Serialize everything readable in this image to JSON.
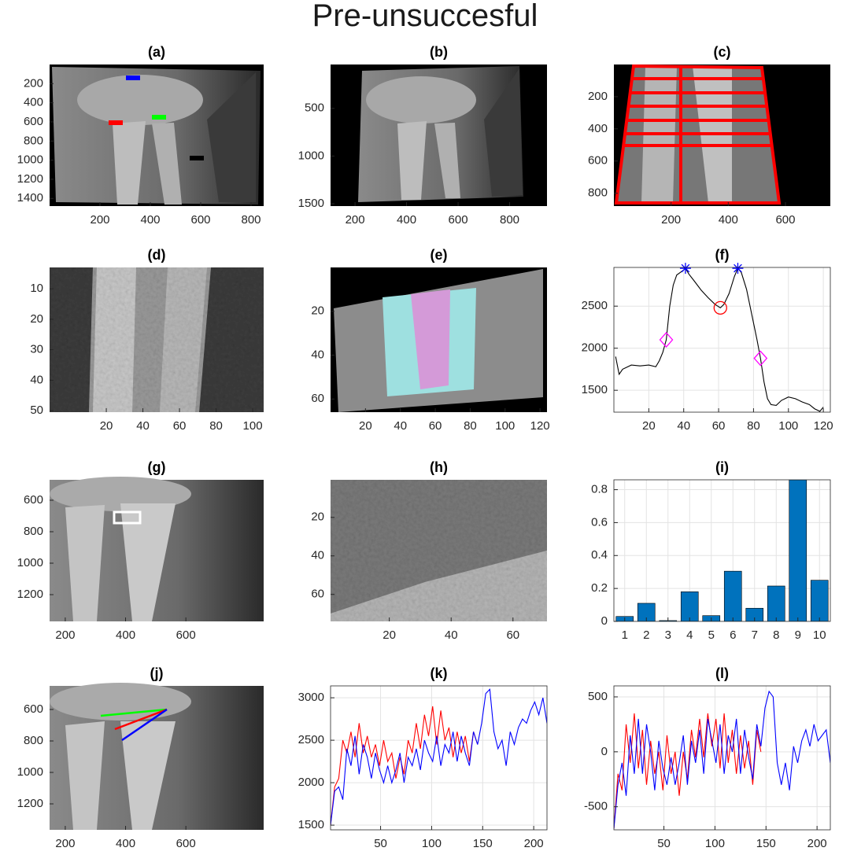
{
  "title": "Pre-unsuccesful",
  "chart_data": [
    {
      "type": "image",
      "title": "(a)",
      "xlim": [
        0,
        850
      ],
      "ylim": [
        0,
        1480
      ],
      "yreverse": true,
      "xticks": [
        200,
        400,
        600,
        800
      ],
      "yticks": [
        200,
        400,
        600,
        800,
        1000,
        1200,
        1400
      ]
    },
    {
      "type": "image",
      "title": "(b)",
      "xlim": [
        105,
        945
      ],
      "ylim": [
        40,
        1525
      ],
      "yreverse": true,
      "xticks": [
        200,
        400,
        600,
        800
      ],
      "yticks": [
        500,
        1000,
        1500
      ]
    },
    {
      "type": "image",
      "title": "(c)",
      "xlim": [
        0,
        757
      ],
      "ylim": [
        0,
        880
      ],
      "yreverse": true,
      "xticks": [
        200,
        400,
        600
      ],
      "yticks": [
        200,
        400,
        600,
        800
      ]
    },
    {
      "type": "image",
      "title": "(d)",
      "xlim": [
        -11,
        106
      ],
      "ylim": [
        3,
        50.5
      ],
      "yreverse": true,
      "xticks": [
        20,
        40,
        60,
        80,
        100
      ],
      "yticks": [
        10,
        20,
        30,
        40,
        50
      ]
    },
    {
      "type": "image",
      "title": "(e)",
      "xlim": [
        0,
        124
      ],
      "ylim": [
        0,
        66
      ],
      "yreverse": true,
      "xticks": [
        20,
        40,
        60,
        80,
        100,
        120
      ],
      "yticks": [
        20,
        40,
        60
      ]
    },
    {
      "type": "line",
      "title": "(f)",
      "grid": true,
      "xlim": [
        0,
        124
      ],
      "ylim": [
        1240,
        2960
      ],
      "xticks": [
        20,
        40,
        60,
        80,
        100,
        120
      ],
      "yticks": [
        1500,
        2000,
        2500
      ],
      "series": [
        {
          "color": "#000000",
          "x": [
            1,
            3,
            5,
            10,
            15,
            20,
            24,
            26,
            28,
            30,
            32,
            34,
            36,
            38,
            40,
            41,
            43,
            46,
            50,
            54,
            58,
            61,
            63,
            66,
            69,
            71,
            73,
            76,
            79,
            82,
            84,
            86,
            88,
            90,
            93,
            96,
            100,
            104,
            108,
            112,
            115,
            118,
            120
          ],
          "values": [
            1900,
            1690,
            1750,
            1800,
            1790,
            1800,
            1780,
            1850,
            1950,
            2100,
            2500,
            2750,
            2870,
            2900,
            2930,
            2950,
            2880,
            2800,
            2690,
            2600,
            2520,
            2480,
            2520,
            2650,
            2850,
            2950,
            2900,
            2700,
            2400,
            2100,
            1880,
            1600,
            1400,
            1330,
            1320,
            1380,
            1420,
            1400,
            1360,
            1330,
            1280,
            1250,
            1300
          ]
        },
        {
          "color": "#0000ff",
          "marker": "star",
          "x": [
            41,
            71
          ],
          "values": [
            2950,
            2950
          ]
        },
        {
          "color": "#ff0000",
          "marker": "circle",
          "x": [
            61
          ],
          "values": [
            2480
          ]
        },
        {
          "color": "#ff00ff",
          "marker": "diamond",
          "x": [
            30,
            84
          ],
          "values": [
            2100,
            1880
          ]
        }
      ]
    },
    {
      "type": "image",
      "title": "(g)",
      "xlim": [
        148,
        858
      ],
      "ylim": [
        470,
        1370
      ],
      "yreverse": true,
      "xticks": [
        200,
        400,
        600
      ],
      "yticks": [
        600,
        800,
        1000,
        1200
      ]
    },
    {
      "type": "image",
      "title": "(h)",
      "xlim": [
        1,
        71
      ],
      "ylim": [
        0.5,
        74
      ],
      "yreverse": true,
      "xticks": [
        20,
        40,
        60
      ],
      "yticks": [
        20,
        40,
        60
      ]
    },
    {
      "type": "bar",
      "title": "(i)",
      "grid": true,
      "color": "#0072bd",
      "x": [
        1,
        2,
        3,
        4,
        5,
        6,
        7,
        8,
        9,
        10
      ],
      "values": [
        0.03,
        0.11,
        0.005,
        0.18,
        0.035,
        0.305,
        0.08,
        0.215,
        0.86,
        0.25
      ],
      "xlim": [
        0.5,
        10.5
      ],
      "ylim": [
        0,
        0.86
      ],
      "xticks": [
        1,
        2,
        3,
        4,
        5,
        6,
        7,
        8,
        9,
        10
      ],
      "yticks": [
        0,
        0.2,
        0.4,
        0.6,
        0.8
      ]
    },
    {
      "type": "image",
      "title": "(j)",
      "xlim": [
        148,
        858
      ],
      "ylim": [
        450,
        1365
      ],
      "yreverse": true,
      "xticks": [
        200,
        400,
        600
      ],
      "yticks": [
        600,
        800,
        1000,
        1200
      ]
    },
    {
      "type": "line",
      "title": "(k)",
      "grid": true,
      "xlim": [
        1,
        213
      ],
      "ylim": [
        1445,
        3140
      ],
      "xticks": [
        50,
        100,
        150,
        200
      ],
      "yticks": [
        1500,
        2000,
        2500,
        3000
      ],
      "series": [
        {
          "color": "#ff0000",
          "x": [
            1,
            5,
            9,
            13,
            17,
            21,
            25,
            29,
            33,
            37,
            41,
            45,
            49,
            53,
            57,
            61,
            65,
            69,
            73,
            77,
            81,
            85,
            89,
            93,
            97,
            101,
            105,
            109,
            113,
            117,
            121,
            125,
            129,
            133,
            137,
            141,
            145
          ],
          "values": [
            1500,
            1950,
            2050,
            2500,
            2350,
            2600,
            2300,
            2700,
            2350,
            2550,
            2300,
            2450,
            2200,
            2500,
            2250,
            2350,
            2050,
            2300,
            2100,
            2500,
            2350,
            2700,
            2400,
            2800,
            2550,
            2900,
            2450,
            2850,
            2500,
            2650,
            2300,
            2600,
            2350,
            2550,
            2250,
            2600,
            2450
          ]
        },
        {
          "color": "#0000ff",
          "x": [
            1,
            5,
            9,
            13,
            17,
            21,
            25,
            29,
            33,
            37,
            41,
            45,
            49,
            53,
            57,
            61,
            65,
            69,
            73,
            77,
            81,
            85,
            89,
            93,
            97,
            101,
            105,
            109,
            113,
            117,
            121,
            125,
            129,
            133,
            137,
            141,
            145,
            149,
            153,
            157,
            161,
            165,
            169,
            173,
            177,
            181,
            185,
            189,
            193,
            197,
            201,
            205,
            209,
            213
          ],
          "values": [
            1500,
            1900,
            1950,
            1800,
            2400,
            2200,
            2550,
            2100,
            2450,
            2300,
            2050,
            2350,
            2150,
            2000,
            2200,
            2000,
            2150,
            2350,
            2000,
            2300,
            2200,
            2400,
            2150,
            2500,
            2350,
            2250,
            2550,
            2200,
            2450,
            2350,
            2600,
            2250,
            2550,
            2350,
            2200,
            2600,
            2450,
            2700,
            3050,
            3100,
            2600,
            2400,
            2500,
            2200,
            2600,
            2450,
            2650,
            2750,
            2700,
            2850,
            2950,
            2800,
            3000,
            2700
          ]
        }
      ]
    },
    {
      "type": "line",
      "title": "(l)",
      "grid": true,
      "xlim": [
        1,
        213
      ],
      "ylim": [
        -710,
        600
      ],
      "xticks": [
        50,
        100,
        150,
        200
      ],
      "yticks": [
        -500,
        0,
        500
      ],
      "series": [
        {
          "color": "#ff0000",
          "x": [
            1,
            5,
            9,
            13,
            17,
            21,
            25,
            29,
            33,
            37,
            41,
            45,
            49,
            53,
            57,
            61,
            65,
            69,
            73,
            77,
            81,
            85,
            89,
            93,
            97,
            101,
            105,
            109,
            113,
            117,
            121,
            125,
            129,
            133,
            137,
            141,
            145
          ],
          "values": [
            -700,
            -200,
            -350,
            250,
            -100,
            350,
            -150,
            200,
            -300,
            100,
            -200,
            0,
            -350,
            150,
            -200,
            0,
            -400,
            0,
            -250,
            200,
            -50,
            300,
            -50,
            350,
            50,
            300,
            -150,
            350,
            -100,
            200,
            -200,
            150,
            -150,
            100,
            -300,
            200,
            0
          ]
        },
        {
          "color": "#0000ff",
          "x": [
            1,
            5,
            9,
            13,
            17,
            21,
            25,
            29,
            33,
            37,
            41,
            45,
            49,
            53,
            57,
            61,
            65,
            69,
            73,
            77,
            81,
            85,
            89,
            93,
            97,
            101,
            105,
            109,
            113,
            117,
            121,
            125,
            129,
            133,
            137,
            141,
            145,
            149,
            153,
            157,
            161,
            165,
            169,
            173,
            177,
            181,
            185,
            189,
            193,
            197,
            201,
            205,
            209,
            213
          ],
          "values": [
            -700,
            -300,
            -100,
            -400,
            150,
            -200,
            300,
            -200,
            250,
            0,
            -350,
            100,
            -150,
            -300,
            -50,
            -300,
            -100,
            150,
            -300,
            100,
            -100,
            200,
            -200,
            300,
            100,
            -100,
            250,
            -200,
            150,
            0,
            300,
            -200,
            200,
            -50,
            -250,
            250,
            50,
            400,
            550,
            500,
            -100,
            -300,
            -100,
            -350,
            50,
            -100,
            100,
            200,
            50,
            250,
            100,
            150,
            200,
            -100
          ]
        }
      ]
    }
  ]
}
